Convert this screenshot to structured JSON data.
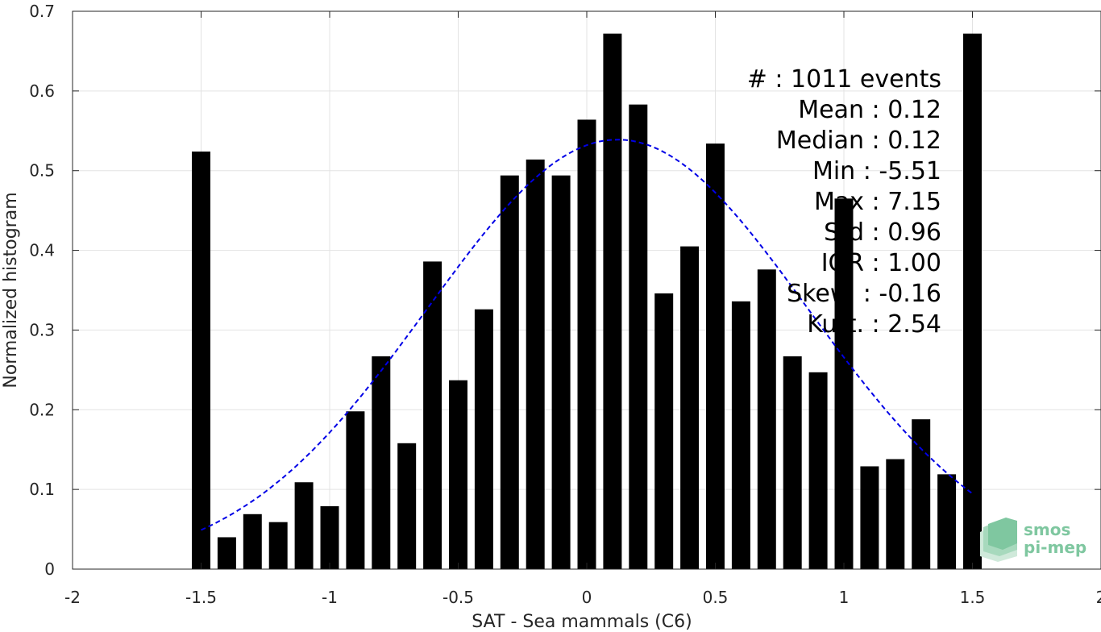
{
  "chart_data": {
    "type": "bar",
    "xlabel": "SAT - Sea mammals (C6)",
    "ylabel": "Normalized histogram",
    "xlim": [
      -2,
      2
    ],
    "ylim": [
      0,
      0.7
    ],
    "xticks": [
      "-2",
      "-1.5",
      "-1",
      "-0.5",
      "0",
      "0.5",
      "1",
      "1.5",
      "2"
    ],
    "yticks": [
      "0",
      "0.1",
      "0.2",
      "0.3",
      "0.4",
      "0.5",
      "0.6",
      "0.7"
    ],
    "grid": true,
    "bar_color": "#000000",
    "fit_color": "#0000e6",
    "bin_width": 0.1,
    "bins": [
      {
        "x": -1.5,
        "y": 0.524
      },
      {
        "x": -1.4,
        "y": 0.04
      },
      {
        "x": -1.3,
        "y": 0.069
      },
      {
        "x": -1.2,
        "y": 0.059
      },
      {
        "x": -1.1,
        "y": 0.109
      },
      {
        "x": -1.0,
        "y": 0.079
      },
      {
        "x": -0.9,
        "y": 0.198
      },
      {
        "x": -0.8,
        "y": 0.267
      },
      {
        "x": -0.7,
        "y": 0.158
      },
      {
        "x": -0.6,
        "y": 0.386
      },
      {
        "x": -0.5,
        "y": 0.237
      },
      {
        "x": -0.4,
        "y": 0.326
      },
      {
        "x": -0.3,
        "y": 0.494
      },
      {
        "x": -0.2,
        "y": 0.514
      },
      {
        "x": -0.1,
        "y": 0.494
      },
      {
        "x": 0.0,
        "y": 0.564
      },
      {
        "x": 0.1,
        "y": 0.672
      },
      {
        "x": 0.2,
        "y": 0.583
      },
      {
        "x": 0.3,
        "y": 0.346
      },
      {
        "x": 0.4,
        "y": 0.405
      },
      {
        "x": 0.5,
        "y": 0.534
      },
      {
        "x": 0.6,
        "y": 0.336
      },
      {
        "x": 0.7,
        "y": 0.376
      },
      {
        "x": 0.8,
        "y": 0.267
      },
      {
        "x": 0.9,
        "y": 0.247
      },
      {
        "x": 1.0,
        "y": 0.465
      },
      {
        "x": 1.1,
        "y": 0.129
      },
      {
        "x": 1.2,
        "y": 0.138
      },
      {
        "x": 1.3,
        "y": 0.188
      },
      {
        "x": 1.4,
        "y": 0.119
      },
      {
        "x": 1.5,
        "y": 0.672
      }
    ],
    "fit": {
      "type": "gaussian",
      "mean": 0.12,
      "std": 0.74,
      "peak": 0.539,
      "x_range": [
        -1.5,
        1.5
      ]
    },
    "stats": [
      "#  : 1011 events",
      "Mean : 0.12",
      "Median : 0.12",
      "Min : -5.51",
      "Max : 7.15",
      "Std : 0.96",
      "IQR : 1.00",
      "Skew. : -0.16",
      "Kurt. : 2.54"
    ]
  },
  "logo": {
    "line1": "smos",
    "line2": "pi-mep",
    "color": "#7fc7a0"
  }
}
